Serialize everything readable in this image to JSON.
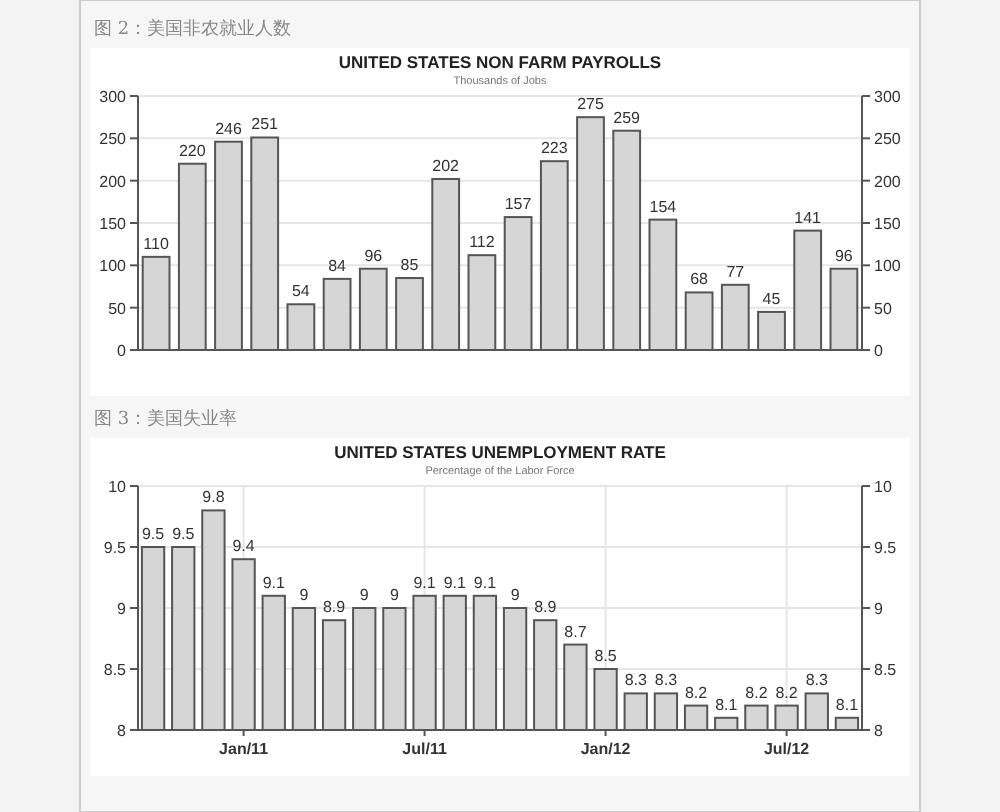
{
  "chart_data": [
    {
      "type": "bar",
      "title": "UNITED STATES NON FARM PAYROLLS",
      "subtitle": "Thousands of Jobs",
      "annotations": [
        "图 2：美国非农就业人数"
      ],
      "categories": [
        null,
        null,
        null,
        null,
        null,
        null,
        null,
        null,
        null,
        null,
        null,
        null,
        null,
        null,
        null,
        null,
        null,
        null,
        null,
        null
      ],
      "values": [
        110,
        220,
        246,
        251,
        54,
        84,
        96,
        85,
        202,
        112,
        157,
        223,
        275,
        259,
        154,
        68,
        77,
        45,
        141,
        96
      ],
      "color": "#d6d6d6",
      "ylim": [
        0,
        300
      ],
      "yticks": [
        0,
        50,
        100,
        150,
        200,
        250,
        300
      ],
      "y2lim": [
        0,
        300
      ],
      "y2ticks": [
        0,
        50,
        100,
        150,
        200,
        250,
        300
      ],
      "grid": "y",
      "data_labels": true
    },
    {
      "type": "bar",
      "title": "UNITED STATES UNEMPLOYMENT RATE",
      "subtitle": "Percentage of the Labor Force",
      "annotations": [
        "图 3：美国失业率"
      ],
      "categories": [
        null,
        null,
        null,
        "Jan/11",
        null,
        null,
        null,
        null,
        null,
        "Jul/11",
        null,
        null,
        null,
        null,
        null,
        "Jan/12",
        null,
        null,
        null,
        null,
        null,
        "Jul/12",
        null,
        null
      ],
      "values": [
        9.5,
        9.5,
        9.8,
        9.4,
        9.1,
        9,
        8.9,
        9,
        9,
        9.1,
        9.1,
        9.1,
        9,
        8.9,
        8.7,
        8.5,
        8.3,
        8.3,
        8.2,
        8.1,
        8.2,
        8.2,
        8.3,
        8.1
      ],
      "color": "#d6d6d6",
      "ylim": [
        8,
        10
      ],
      "yticks": [
        8,
        8.5,
        9,
        9.5,
        10
      ],
      "y2lim": [
        8,
        10
      ],
      "y2ticks": [
        8,
        8.5,
        9,
        9.5,
        10
      ],
      "grid": true,
      "data_labels": true
    }
  ]
}
